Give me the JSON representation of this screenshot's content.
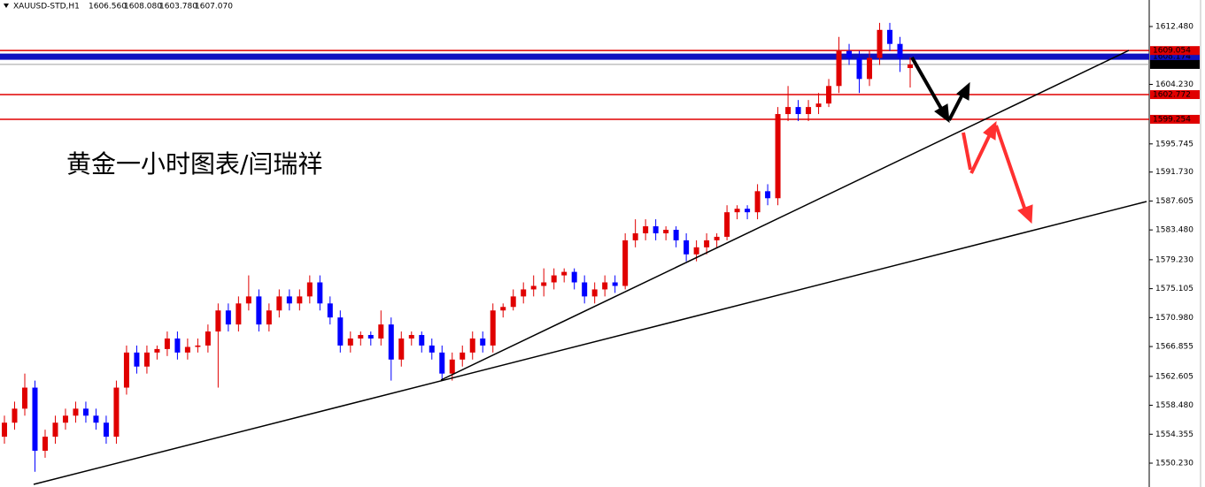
{
  "chart_data": {
    "type": "candlestick",
    "title": "XAUUSD-STD,H1",
    "header_values": [
      "1606.560",
      "1608.080",
      "1603.780",
      "1607.070"
    ],
    "annotation": "黄金一小时图表/闫瑞祥",
    "up_color": "#e00000",
    "down_color": "#0000ff",
    "ylim": [
      1546.83,
      1616.26
    ],
    "yticks": [
      {
        "value": 1612.48,
        "label": "1612.480"
      },
      {
        "value": 1604.23,
        "label": "1604.230"
      },
      {
        "value": 1595.745,
        "label": "1595.745"
      },
      {
        "value": 1591.73,
        "label": "1591.730"
      },
      {
        "value": 1587.605,
        "label": "1587.605"
      },
      {
        "value": 1583.48,
        "label": "1583.480"
      },
      {
        "value": 1579.23,
        "label": "1579.230"
      },
      {
        "value": 1575.105,
        "label": "1575.105"
      },
      {
        "value": 1570.98,
        "label": "1570.980"
      },
      {
        "value": 1566.855,
        "label": "1566.855"
      },
      {
        "value": 1562.605,
        "label": "1562.605"
      },
      {
        "value": 1558.48,
        "label": "1558.480"
      },
      {
        "value": 1554.355,
        "label": "1554.355"
      },
      {
        "value": 1550.23,
        "label": "1550.230"
      }
    ],
    "levels": [
      {
        "value": 1608.174,
        "label": "1608.174",
        "color": "#1010c0"
      },
      {
        "value": 1609.054,
        "label": "1609.054",
        "color": "#e00000"
      },
      {
        "value": 1607.07,
        "label": "1607.070",
        "color": "#000000"
      },
      {
        "value": 1602.772,
        "label": "1602.772",
        "color": "#e00000"
      },
      {
        "value": 1599.254,
        "label": "1599.254",
        "color": "#e00000"
      }
    ],
    "open": [
      1554,
      1556,
      1558,
      1561,
      1552,
      1554,
      1556,
      1557,
      1558,
      1557,
      1556,
      1554,
      1561,
      1566,
      1564,
      1566,
      1566.5,
      1568,
      1566,
      1566.8,
      1567,
      1569,
      1572,
      1570,
      1573,
      1574,
      1570,
      1572,
      1574,
      1573,
      1574,
      1576,
      1573,
      1571,
      1567,
      1568,
      1568.5,
      1568,
      1570,
      1565,
      1568,
      1568.5,
      1567,
      1566,
      1563,
      1565,
      1566,
      1568,
      1567,
      1572,
      1572.5,
      1574,
      1575,
      1575.5,
      1576,
      1577,
      1577.5,
      1576,
      1574,
      1575,
      1576,
      1575.5,
      1582,
      1583,
      1584,
      1583,
      1583.5,
      1582,
      1580,
      1581,
      1582,
      1582.5,
      1586,
      1586.5,
      1586,
      1589,
      1588,
      1600,
      1601,
      1600,
      1601,
      1601.5,
      1604,
      1609,
      1608,
      1605,
      1608,
      1612,
      1610,
      1606.56
    ],
    "high": [
      1557,
      1559,
      1563,
      1562,
      1555,
      1557,
      1558,
      1559,
      1559,
      1558,
      1557,
      1562,
      1567,
      1567,
      1567,
      1567,
      1569,
      1569,
      1568,
      1568,
      1570,
      1573,
      1573,
      1574,
      1577,
      1575,
      1573,
      1575,
      1575,
      1575,
      1577,
      1577,
      1574,
      1572,
      1569,
      1569,
      1569,
      1572,
      1571,
      1569,
      1569,
      1569,
      1568,
      1567,
      1566,
      1567,
      1569,
      1569,
      1573,
      1573,
      1575,
      1576,
      1577,
      1578,
      1578,
      1578,
      1578,
      1577,
      1576,
      1577,
      1577,
      1583,
      1585,
      1585,
      1585,
      1584,
      1584,
      1583,
      1582,
      1583,
      1583,
      1587,
      1587,
      1587,
      1590,
      1590,
      1601,
      1604,
      1602,
      1602,
      1603,
      1605,
      1611,
      1610,
      1609,
      1609,
      1613,
      1613,
      1611,
      1608.08
    ],
    "low": [
      1553,
      1555,
      1557,
      1549,
      1551,
      1553,
      1555,
      1556,
      1556,
      1555,
      1553,
      1553,
      1560,
      1563,
      1563,
      1565,
      1565.5,
      1565,
      1565,
      1566,
      1566,
      1561,
      1569,
      1569,
      1572,
      1569,
      1569,
      1571,
      1572,
      1572,
      1573,
      1572,
      1570,
      1566,
      1566,
      1567,
      1567,
      1567,
      1562,
      1564,
      1567,
      1566,
      1565,
      1562,
      1562,
      1564,
      1565,
      1566,
      1566,
      1571,
      1572,
      1573,
      1574,
      1574,
      1575,
      1576,
      1575,
      1573,
      1573,
      1574,
      1574.5,
      1575,
      1581,
      1582,
      1582,
      1582,
      1581,
      1579,
      1579,
      1580,
      1581,
      1582,
      1585,
      1585,
      1585,
      1587,
      1587,
      1599,
      1599,
      1599,
      1600,
      1601,
      1603,
      1607,
      1603,
      1604,
      1607,
      1609,
      1606,
      1603.78
    ],
    "close": [
      1556,
      1558,
      1561,
      1552,
      1554,
      1556,
      1557,
      1558,
      1557,
      1556,
      1554,
      1561,
      1566,
      1564,
      1566,
      1566.5,
      1568,
      1566,
      1566.8,
      1567,
      1569,
      1572,
      1570,
      1573,
      1574,
      1570,
      1572,
      1574,
      1573,
      1574,
      1576,
      1573,
      1571,
      1567,
      1568,
      1568.5,
      1568,
      1570,
      1565,
      1568,
      1568.5,
      1567,
      1566,
      1563,
      1565,
      1566,
      1568,
      1567,
      1572,
      1572.5,
      1574,
      1575,
      1575.5,
      1576,
      1577,
      1577.5,
      1576,
      1574,
      1575,
      1576,
      1575.5,
      1582,
      1583,
      1584,
      1583,
      1583.5,
      1582,
      1580,
      1581,
      1582,
      1582.5,
      1586,
      1586.5,
      1586,
      1589,
      1588,
      1600,
      1601,
      1600,
      1601,
      1601.5,
      1604,
      1609,
      1608,
      1605,
      1608,
      1612,
      1610,
      1608,
      1607.07
    ]
  }
}
